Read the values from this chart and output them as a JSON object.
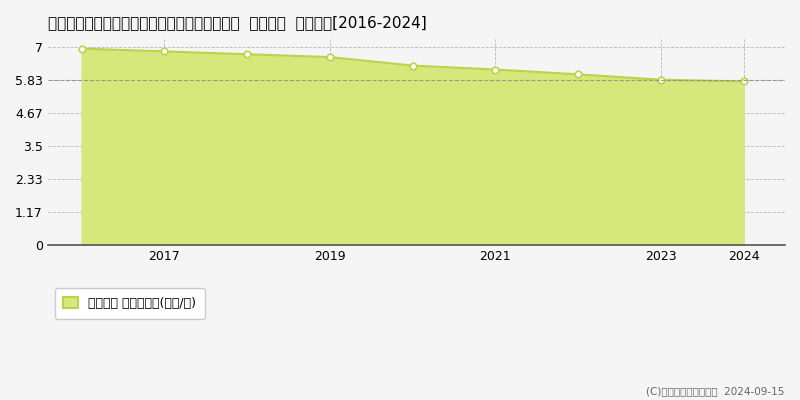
{
  "title": "栃木県栃木市西方町金崎字木ノ下２８８番１外  地価公示  地価推移[2016-2024]",
  "years": [
    2016,
    2017,
    2018,
    2019,
    2020,
    2021,
    2022,
    2023,
    2024
  ],
  "values": [
    6.93,
    6.83,
    6.73,
    6.63,
    6.33,
    6.19,
    6.02,
    5.83,
    5.77
  ],
  "yticks": [
    0,
    1.17,
    2.33,
    3.5,
    4.67,
    5.83,
    7
  ],
  "ylim": [
    0,
    7.3
  ],
  "xlim": [
    2015.6,
    2024.5
  ],
  "xtick_labels": [
    "2017",
    "2019",
    "2021",
    "2023",
    "2024"
  ],
  "xtick_positions": [
    2017,
    2019,
    2021,
    2023,
    2024
  ],
  "line_color": "#b8d44a",
  "fill_color": "#d6e87c",
  "marker_color": "white",
  "marker_edge_color": "#b8d44a",
  "grid_color": "#aaaaaa",
  "bg_color": "#f5f5f5",
  "plot_bg_color": "#f5f5f5",
  "legend_label": "地価公示 平均坪単価(万円/坪)",
  "copyright_text": "(C)土地価格ドットコム  2024-09-15",
  "dashed_line_y": 5.83,
  "title_fontsize": 11,
  "axis_fontsize": 9,
  "legend_fontsize": 9
}
